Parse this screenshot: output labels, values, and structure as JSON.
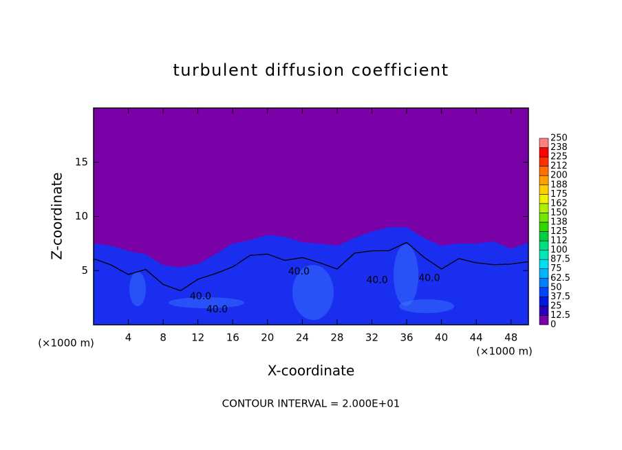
{
  "chart_data": {
    "type": "heatmap",
    "title": "turbulent diffusion coefficient",
    "x_label": "X-coordinate",
    "y_label": "Z-coordinate",
    "x_unit": "(×1000 m)",
    "y_unit": "(×1000 m)",
    "note": "CONTOUR INTERVAL = 2.000E+01",
    "xlim": [
      0,
      50
    ],
    "ylim": [
      0,
      20
    ],
    "xticks": [
      4,
      8,
      12,
      16,
      20,
      24,
      28,
      32,
      36,
      40,
      44,
      48
    ],
    "yticks": [
      5,
      10,
      15
    ],
    "background_color": "#7a00a8",
    "field_color": "#1a2ef0",
    "boundary": {
      "x": [
        0,
        2,
        4,
        6,
        8,
        10,
        12,
        14,
        16,
        18,
        20,
        22,
        24,
        26,
        28,
        30,
        32,
        34,
        36,
        38,
        40,
        42,
        44,
        46,
        48,
        50
      ],
      "z": [
        7.5,
        7.3,
        6.8,
        6.5,
        5.5,
        5.3,
        5.6,
        6.5,
        7.5,
        7.8,
        8.3,
        8.1,
        7.6,
        7.5,
        7.3,
        8.0,
        8.6,
        9.0,
        9.0,
        8.0,
        7.3,
        7.5,
        7.5,
        7.7,
        7.0,
        7.6
      ]
    },
    "contour_labels": [
      {
        "value": 40,
        "label": "40.0",
        "x": 12.3,
        "z": 2.6
      },
      {
        "value": 40,
        "label": "40.0",
        "x": 14.2,
        "z": 1.4
      },
      {
        "value": 40,
        "label": "40.0",
        "x": 23.6,
        "z": 4.9
      },
      {
        "value": 40,
        "label": "40.0",
        "x": 32.6,
        "z": 4.1
      },
      {
        "value": 40,
        "label": "40.0",
        "x": 38.6,
        "z": 4.3
      }
    ],
    "colorbar": {
      "levels": [
        0,
        12.5,
        25,
        37.5,
        50,
        62.5,
        75,
        87.5,
        100,
        112,
        125,
        138,
        150,
        162,
        175,
        188,
        200,
        212,
        225,
        238,
        250
      ],
      "colors": [
        "#7a00a8",
        "#2a00b8",
        "#0018e0",
        "#0044ff",
        "#0080ff",
        "#00b4ff",
        "#00e0f0",
        "#00e8b8",
        "#00e080",
        "#00d040",
        "#30d800",
        "#70e800",
        "#b0f000",
        "#f0f000",
        "#ffd000",
        "#ffa000",
        "#ff7000",
        "#ff3000",
        "#ff0000",
        "#ff8080"
      ]
    }
  }
}
